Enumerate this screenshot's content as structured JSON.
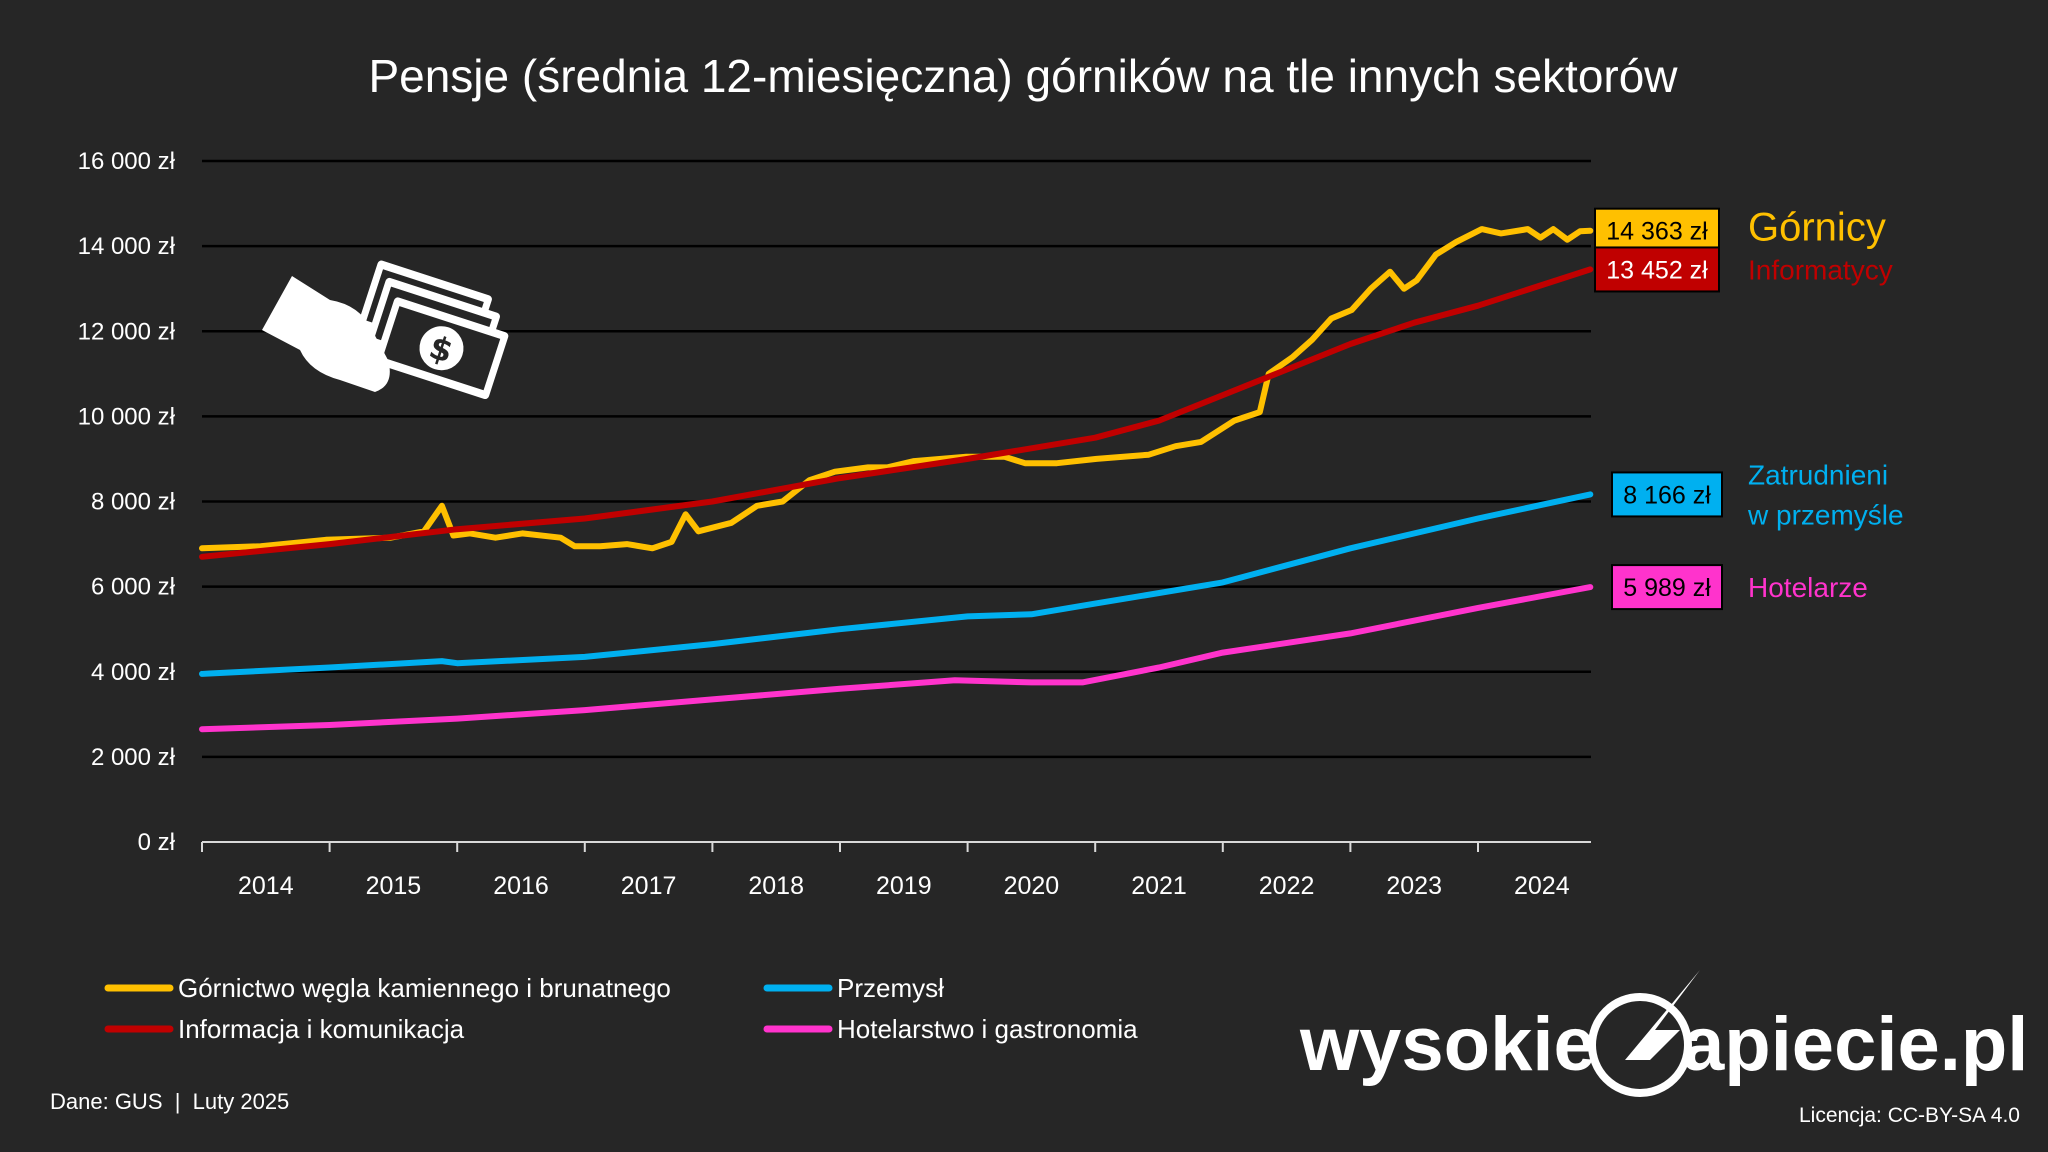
{
  "chart_data": {
    "type": "line",
    "title": "Pensje (średnia 12-miesięczna) górników na tle innych sektorów",
    "xlabel": "",
    "ylabel": "",
    "xlim": [
      2014,
      2025
    ],
    "ylim": [
      0,
      16000
    ],
    "grid": true,
    "y_ticks": [
      "0 zł",
      "2 000 zł",
      "4 000 zł",
      "6 000 zł",
      "8 000 zł",
      "10 000 zł",
      "12 000 zł",
      "14 000 zł",
      "16 000 zł"
    ],
    "x_ticks": [
      "2014",
      "2015",
      "2016",
      "2017",
      "2018",
      "2019",
      "2020",
      "2021",
      "2022",
      "2023",
      "2024"
    ],
    "legend_placement": "bottom-left",
    "series": [
      {
        "name": "Górnictwo węgla kamiennego i brunatnego",
        "color": "#FFC000",
        "end_label": "14 363 zł",
        "side_label": [
          "Górnicy"
        ],
        "x": [
          2014.0,
          2014.46,
          2014.97,
          2015.48,
          2015.74,
          2015.88,
          2015.97,
          2016.1,
          2016.3,
          2016.51,
          2016.81,
          2016.92,
          2017.12,
          2017.33,
          2017.53,
          2017.68,
          2017.79,
          2017.89,
          2018.15,
          2018.35,
          2018.55,
          2018.76,
          2018.96,
          2019.22,
          2019.37,
          2019.58,
          2019.99,
          2020.29,
          2020.45,
          2020.7,
          2021.01,
          2021.42,
          2021.63,
          2021.83,
          2022.09,
          2022.29,
          2022.36,
          2022.55,
          2022.7,
          2022.85,
          2023.01,
          2023.16,
          2023.31,
          2023.42,
          2023.52,
          2023.67,
          2023.83,
          2024.03,
          2024.18,
          2024.39,
          2024.49,
          2024.59,
          2024.7,
          2024.8,
          2024.88
        ],
        "y": [
          6900,
          6950,
          7100,
          7150,
          7300,
          7900,
          7200,
          7250,
          7150,
          7250,
          7150,
          6950,
          6950,
          7000,
          6900,
          7050,
          7700,
          7300,
          7500,
          7900,
          8000,
          8500,
          8700,
          8800,
          8800,
          8950,
          9050,
          9050,
          8900,
          8900,
          9000,
          9100,
          9300,
          9400,
          9900,
          10100,
          11000,
          11400,
          11800,
          12300,
          12500,
          13000,
          13400,
          13000,
          13200,
          13800,
          14100,
          14400,
          14300,
          14400,
          14200,
          14400,
          14150,
          14350,
          14363
        ]
      },
      {
        "name": "Informacja i komunikacja",
        "color": "#C00000",
        "end_label": "13 452 zł",
        "side_label": [
          "Informatycy"
        ],
        "x": [
          2014,
          2015,
          2016,
          2017,
          2018,
          2019,
          2020,
          2021,
          2021.5,
          2022,
          2022.5,
          2023,
          2023.5,
          2024,
          2024.88
        ],
        "y": [
          6700,
          7000,
          7350,
          7600,
          8000,
          8550,
          9000,
          9500,
          9900,
          10500,
          11100,
          11700,
          12200,
          12600,
          13452
        ]
      },
      {
        "name": "Przemysł",
        "color": "#00B0F0",
        "end_label": "8 166 zł",
        "side_label": [
          "Zatrudnieni",
          "w przemyśle"
        ],
        "x": [
          2014,
          2015,
          2015.88,
          2016,
          2017,
          2018,
          2019,
          2020,
          2020.5,
          2021,
          2022,
          2023,
          2024,
          2024.88
        ],
        "y": [
          3950,
          4100,
          4250,
          4200,
          4350,
          4650,
          5000,
          5300,
          5350,
          5600,
          6100,
          6900,
          7600,
          8166
        ]
      },
      {
        "name": "Hotelarstwo i gastronomia",
        "color": "#FF33CC",
        "end_label": "5 989 zł",
        "side_label": [
          "Hotelarze"
        ],
        "x": [
          2014,
          2015,
          2016,
          2017,
          2018,
          2019,
          2019.9,
          2020.5,
          2020.9,
          2021.5,
          2022,
          2023,
          2024,
          2024.88
        ],
        "y": [
          2650,
          2750,
          2900,
          3100,
          3350,
          3600,
          3800,
          3750,
          3750,
          4100,
          4450,
          4900,
          5500,
          5989
        ]
      }
    ]
  },
  "footer": {
    "source": "Dane: GUS  |  Luty 2025",
    "license": "Licencja: CC-BY-SA 4.0",
    "logo_text_left": "wysokie",
    "logo_text_right": "apiecie.pl"
  },
  "icons": {
    "illustration": "hand-money-icon"
  }
}
